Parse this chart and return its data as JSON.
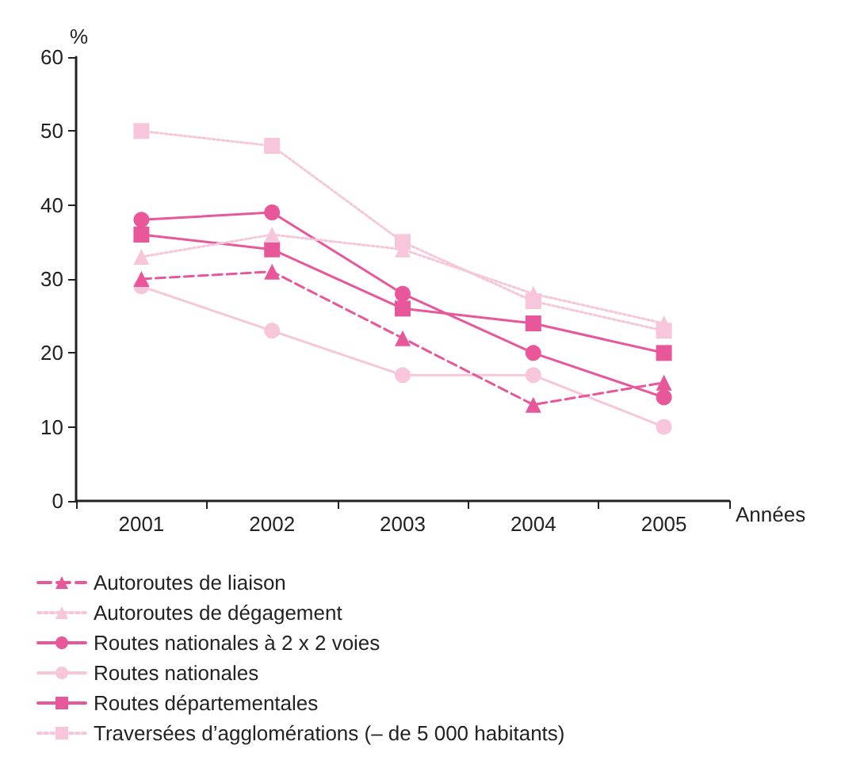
{
  "chart_data": {
    "type": "line",
    "ylabel": "%",
    "xlabel": "Années",
    "categories": [
      "2001",
      "2002",
      "2003",
      "2004",
      "2005"
    ],
    "ylim": [
      0,
      60
    ],
    "yticks": [
      0,
      10,
      20,
      30,
      40,
      50,
      60
    ],
    "grid": false,
    "legend": "bottom left",
    "series": [
      {
        "name": "Autoroutes de liaison",
        "color": "#e8579a",
        "marker": "triangle",
        "line_style": "dashed",
        "values": [
          30,
          31,
          22,
          13,
          16
        ]
      },
      {
        "name": "Autoroutes de dégagement",
        "color": "#f7c6da",
        "marker": "triangle",
        "line_style": "dotted",
        "values": [
          33,
          36,
          34,
          28,
          24
        ]
      },
      {
        "name": "Routes nationales à 2 x 2 voies",
        "color": "#e8579a",
        "marker": "circle",
        "line_style": "solid",
        "values": [
          38,
          39,
          28,
          20,
          14
        ]
      },
      {
        "name": "Routes nationales",
        "color": "#f7c6da",
        "marker": "circle",
        "line_style": "solid",
        "values": [
          29,
          23,
          17,
          17,
          10
        ]
      },
      {
        "name": "Routes départementales",
        "color": "#e8579a",
        "marker": "square",
        "line_style": "solid",
        "values": [
          36,
          34,
          26,
          24,
          20
        ]
      },
      {
        "name": "Traversées d’agglomérations (– de 5 000 habitants)",
        "color": "#f7c6da",
        "marker": "square",
        "line_style": "dotted",
        "values": [
          50,
          48,
          35,
          27,
          23
        ]
      }
    ]
  }
}
